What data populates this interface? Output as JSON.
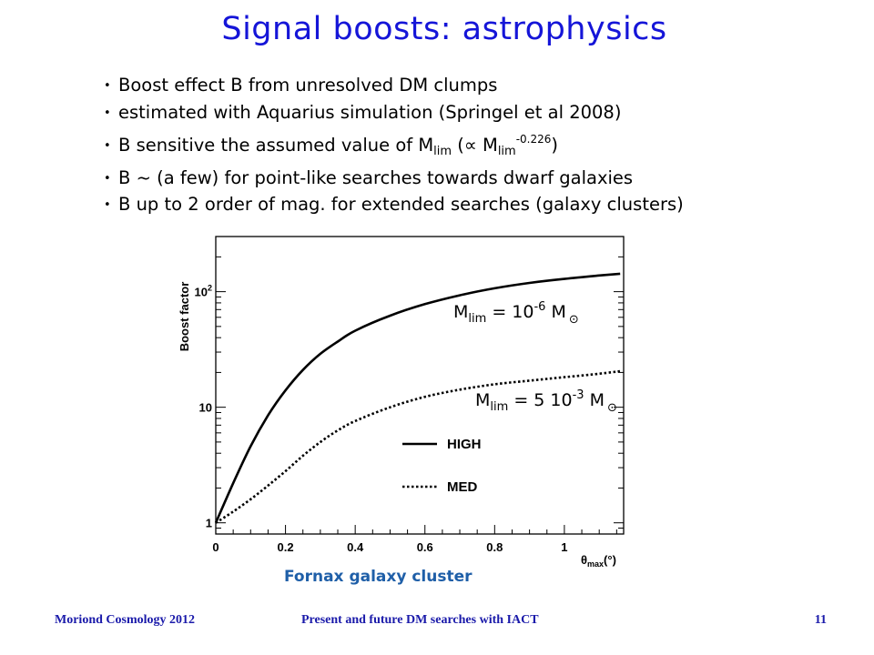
{
  "slide": {
    "title": "Signal boosts: astrophysics",
    "bullets": [
      {
        "text": "Boost effect B from unresolved DM clumps"
      },
      {
        "text": "estimated with Aquarius simulation (Springel et al 2008)"
      },
      {
        "pre": "B sensitive the assumed value of M",
        "sub1": "lim",
        "mid": " (∝ M",
        "sub2": "lim",
        "sup": "-0.226",
        "post": ")"
      },
      {
        "text": "B ~ (a few) for point-like searches towards dwarf galaxies"
      },
      {
        "text": "B up to 2 order of mag. for extended searches (galaxy clusters)"
      }
    ],
    "caption": "Fornax galaxy cluster",
    "footer": {
      "left": "Moriond Cosmology 2012",
      "center": "Present and future DM searches with IACT",
      "right": "11"
    }
  },
  "chart_data": {
    "type": "line",
    "ylabel": "Boost factor",
    "xlabel": {
      "main": "θ",
      "sub": "max",
      "unit": "(°)"
    },
    "x_ticks": [
      "0",
      "0.2",
      "0.4",
      "0.6",
      "0.8",
      "1"
    ],
    "y_ticks": [
      {
        "value": 1,
        "base": "1",
        "exp": ""
      },
      {
        "value": 10,
        "base": "10",
        "exp": ""
      },
      {
        "value": 100,
        "base": "10",
        "exp": "2"
      }
    ],
    "xlim": [
      0,
      1.17
    ],
    "ylim": [
      0.8,
      300
    ],
    "yscale": "log",
    "grid": false,
    "legend_position": "center-right",
    "series": [
      {
        "name": "HIGH",
        "style": "solid",
        "annotation": {
          "pre": "M",
          "sub": "lim",
          "mid": " = 10",
          "sup": "-6",
          "post": " M",
          "sym": "⊙"
        },
        "x": [
          0,
          0.05,
          0.1,
          0.15,
          0.2,
          0.25,
          0.3,
          0.35,
          0.4,
          0.5,
          0.6,
          0.7,
          0.8,
          0.9,
          1.0,
          1.1,
          1.16
        ],
        "y": [
          1.0,
          2.2,
          4.6,
          8.5,
          14,
          21,
          29,
          37,
          46,
          62,
          78,
          93,
          107,
          119,
          129,
          138,
          143
        ]
      },
      {
        "name": "MED",
        "style": "dotted",
        "annotation": {
          "pre": "M",
          "sub": "lim",
          "mid": " = 5 10",
          "sup": "-3",
          "post": " M",
          "sym": "⊙"
        },
        "x": [
          0,
          0.05,
          0.1,
          0.15,
          0.2,
          0.25,
          0.3,
          0.35,
          0.4,
          0.5,
          0.6,
          0.7,
          0.8,
          0.9,
          1.0,
          1.1,
          1.16
        ],
        "y": [
          1.0,
          1.25,
          1.6,
          2.1,
          2.8,
          3.8,
          5.0,
          6.3,
          7.6,
          10,
          12.3,
          14.2,
          15.8,
          17,
          18.2,
          19.5,
          20.5
        ]
      }
    ]
  }
}
